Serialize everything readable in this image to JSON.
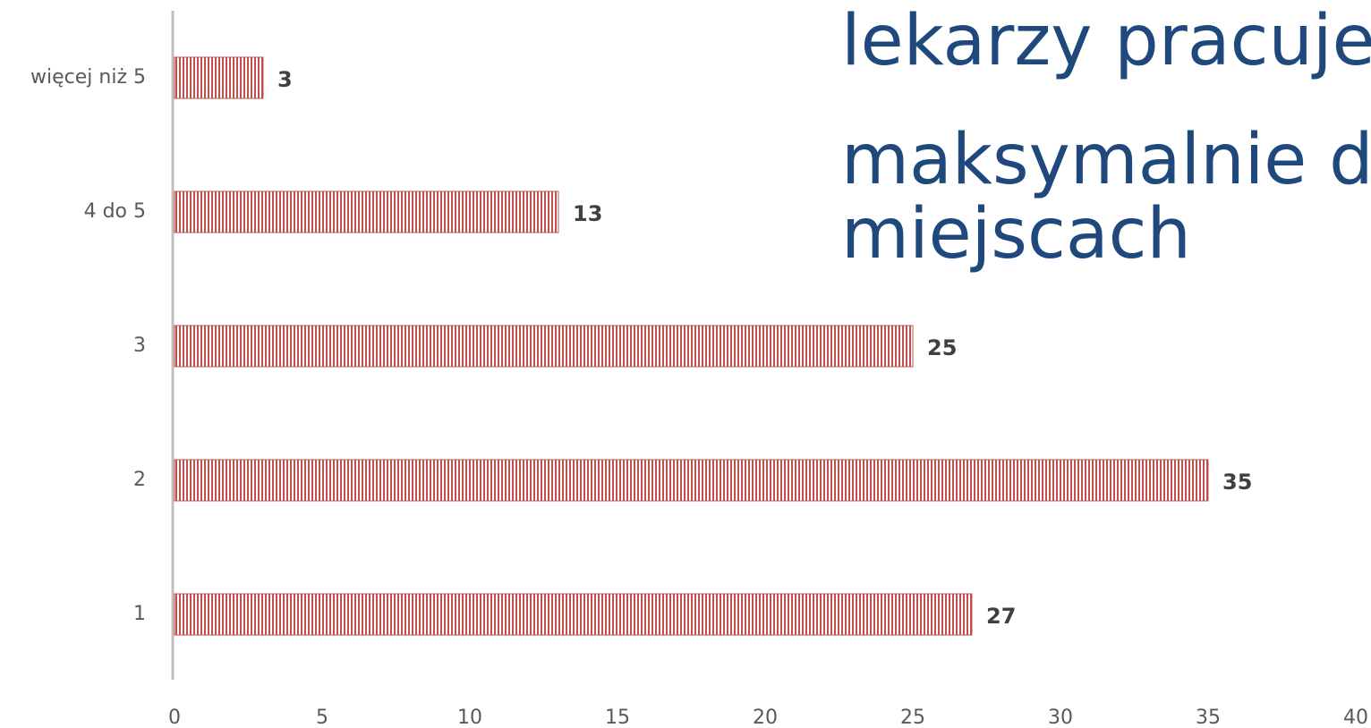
{
  "chart_data": {
    "type": "barh",
    "annotation": [
      "lekarzy pracuje",
      "maksymalnie dw",
      "miejscach"
    ],
    "categories": [
      "więcej niż 5",
      "4 do 5",
      "3",
      "2",
      "1"
    ],
    "values": [
      3,
      13,
      25,
      35,
      27
    ],
    "color": "#c0504d",
    "xlim": [
      0,
      40
    ],
    "xticks": [
      0,
      5,
      10,
      15,
      20,
      25,
      30,
      35,
      40
    ]
  }
}
